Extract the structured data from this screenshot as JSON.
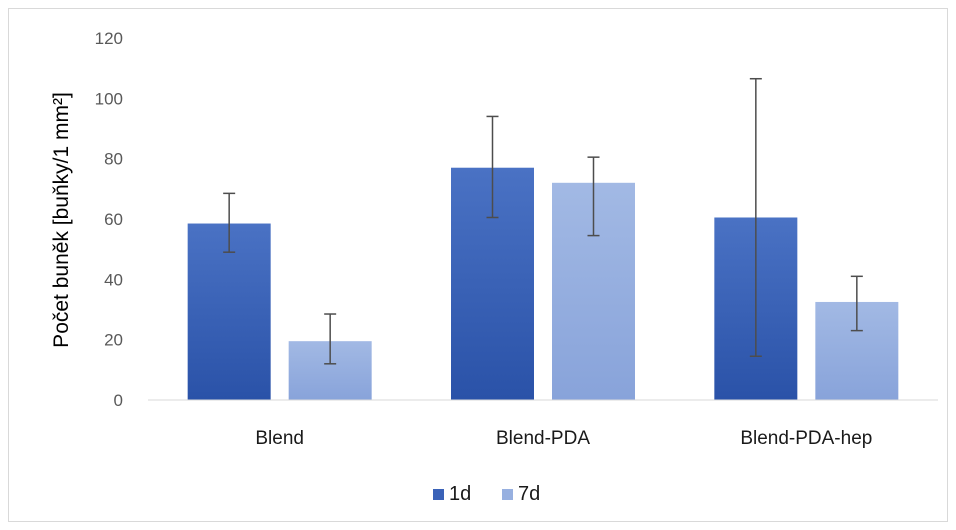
{
  "chart_data": {
    "type": "bar",
    "title": "",
    "xlabel": "",
    "ylabel": "Počet buněk [buňky/1 mm²]",
    "categories": [
      "Blend",
      "Blend-PDA",
      "Blend-PDA-hep"
    ],
    "ylim": [
      0,
      120
    ],
    "yticks": [
      0,
      20,
      40,
      60,
      80,
      100,
      120
    ],
    "ytick_labels": [
      "0",
      "20",
      "40",
      "60",
      "80",
      "100",
      "120"
    ],
    "grid": false,
    "legend": "bottom",
    "series": [
      {
        "name": "1d",
        "color": "#3a62b8",
        "values": [
          58.5,
          77,
          60.5
        ],
        "error_low": [
          49,
          60.5,
          14.5
        ],
        "error_high": [
          68.5,
          94,
          106.5
        ]
      },
      {
        "name": "7d",
        "color": "#97b0e0",
        "values": [
          19.5,
          72,
          32.5
        ],
        "error_low": [
          12,
          54.5,
          23
        ],
        "error_high": [
          28.5,
          80.5,
          41
        ]
      }
    ]
  }
}
